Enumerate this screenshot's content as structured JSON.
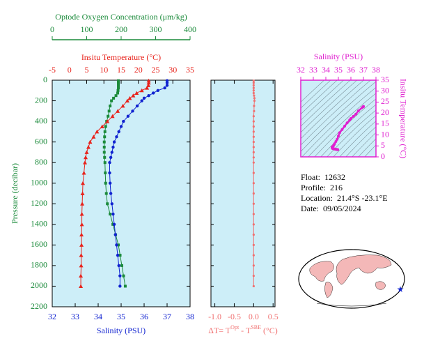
{
  "chart_data": [
    {
      "type": "line",
      "y_label": "Pressure (decibar)",
      "y_color": "#1a8a3a",
      "y": [
        5,
        25,
        50,
        75,
        100,
        125,
        150,
        175,
        200,
        250,
        300,
        350,
        400,
        450,
        500,
        550,
        600,
        650,
        700,
        750,
        800,
        900,
        1000,
        1100,
        1200,
        1300,
        1400,
        1500,
        1600,
        1700,
        1800,
        1900,
        2000
      ],
      "ylim": [
        0,
        2200
      ],
      "y_inverted": true,
      "yticks": [
        0,
        200,
        400,
        600,
        800,
        1000,
        1200,
        1400,
        1600,
        1800,
        2000,
        2200
      ],
      "panel_color": "#cdeef8",
      "series": [
        {
          "name": "Optode Oxygen Concentration (μm/kg)",
          "color": "#1a8a3a",
          "marker": "square",
          "xlim": [
            0,
            400
          ],
          "xticks": [
            0,
            100,
            200,
            300,
            400
          ],
          "values": [
            192,
            192,
            192,
            192,
            191,
            190,
            185,
            178,
            172,
            168,
            165,
            162,
            158,
            155,
            153,
            152,
            151,
            151,
            151,
            152,
            153,
            154,
            155,
            157,
            160,
            168,
            176,
            184,
            192,
            197,
            202,
            207,
            212
          ]
        },
        {
          "name": "Insitu Temperature (°C)",
          "color": "#e8231c",
          "marker": "triangle",
          "xlim": [
            -5,
            35
          ],
          "xticks": [
            -5,
            0,
            5,
            10,
            15,
            20,
            25,
            30,
            35
          ],
          "values": [
            23,
            23,
            22.9,
            22.5,
            21,
            19.5,
            18.5,
            17.5,
            16.8,
            15.5,
            14,
            12.5,
            11,
            9.5,
            8,
            7,
            6,
            5.5,
            5,
            4.7,
            4.5,
            4.2,
            3.9,
            3.8,
            3.7,
            3.6,
            3.6,
            3.5,
            3.5,
            3.4,
            3.4,
            3.3,
            3.3
          ]
        },
        {
          "name": "Salinity (PSU)",
          "color": "#1022d0",
          "marker": "circle",
          "xlim": [
            32,
            38
          ],
          "xticks": [
            32,
            33,
            34,
            35,
            36,
            37,
            38
          ],
          "values": [
            37,
            37,
            37,
            36.9,
            36.6,
            36.4,
            36.2,
            36,
            35.9,
            35.7,
            35.5,
            35.3,
            35.1,
            35,
            34.9,
            34.8,
            34.7,
            34.65,
            34.6,
            34.55,
            34.5,
            34.5,
            34.52,
            34.55,
            34.6,
            34.65,
            34.7,
            34.75,
            34.8,
            34.85,
            34.9,
            34.95,
            34.95
          ]
        }
      ]
    },
    {
      "type": "line",
      "x_label": [
        "ΔT= T",
        "Opt",
        " - T",
        "SBE",
        " (°C)"
      ],
      "color": "#f07070",
      "xlim": [
        -1.1,
        0.55
      ],
      "xticks": [
        {
          "value": -1,
          "label": "-1.0"
        },
        {
          "value": -0.5,
          "label": "-0.5"
        },
        {
          "value": 0,
          "label": "0.0"
        },
        {
          "value": 0.5,
          "label": "0.5"
        }
      ],
      "values": [
        0,
        0,
        0,
        0,
        0,
        0,
        0.01,
        0.02,
        0.02,
        0.01,
        0.01,
        0,
        0,
        0,
        0,
        0,
        0,
        0,
        0,
        0,
        0,
        0,
        0,
        0,
        0,
        0,
        0,
        0,
        0,
        0,
        0,
        0,
        0
      ]
    },
    {
      "type": "scatter",
      "x_label": "Salinity (PSU)",
      "y_label": "Insitu Temperature (°C)",
      "color": "#e020d0",
      "xlim": [
        32,
        38
      ],
      "xticks": [
        32,
        33,
        34,
        35,
        36,
        37,
        38
      ],
      "ylim": [
        0,
        35
      ],
      "yticks": [
        0,
        5,
        10,
        15,
        20,
        25,
        30,
        35
      ]
    }
  ],
  "float_info": [
    {
      "label": "Float:",
      "value": "12632"
    },
    {
      "label": "Profile:",
      "value": "216"
    },
    {
      "label": "Location:",
      "value": "21.4°S  -23.1°E"
    },
    {
      "label": "Date:",
      "value": "09/05/2024"
    }
  ]
}
